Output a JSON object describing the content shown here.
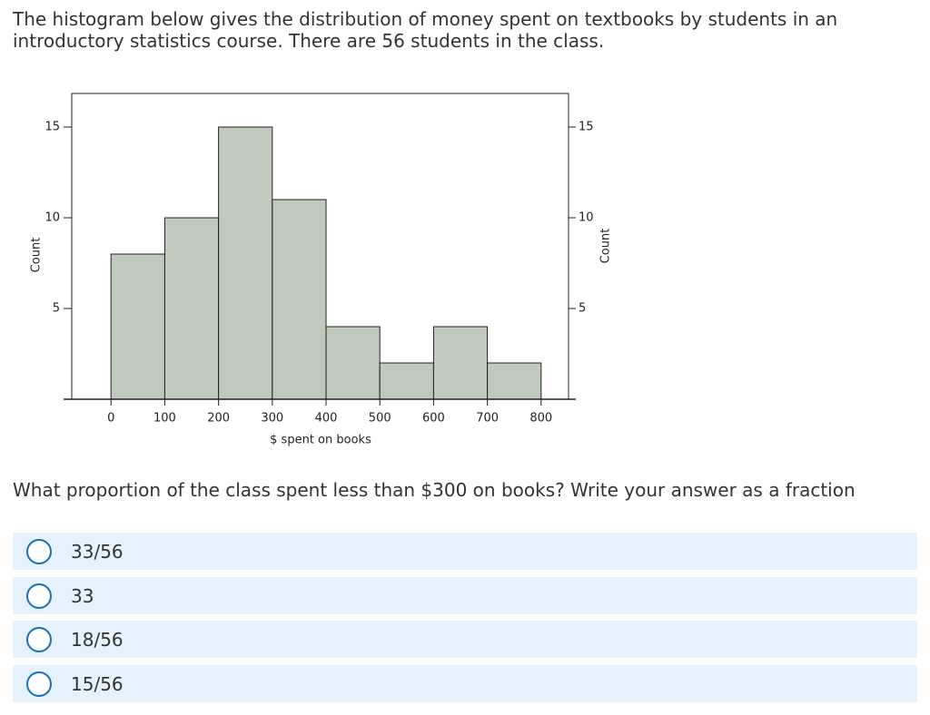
{
  "intro": "The histogram below gives the distribution of money spent on textbooks by students in an introductory statistics course. There are 56 students in the class.",
  "chart_data": {
    "type": "histogram",
    "bins": [
      0,
      100,
      200,
      300,
      400,
      500,
      600,
      700,
      800
    ],
    "values": [
      8,
      10,
      15,
      11,
      4,
      2,
      4,
      2
    ],
    "color": "#bfc9bc",
    "xlabel": "$ spent on books",
    "ylabel": "Count",
    "y2label": "Count",
    "xlim": [
      -73,
      851
    ],
    "xticks": [
      0,
      100,
      200,
      300,
      400,
      500,
      600,
      700,
      800
    ],
    "ylim": [
      0,
      16.85
    ],
    "yticks": [
      5,
      10,
      15
    ],
    "y2lim": [
      0,
      16.85
    ],
    "y2ticks": [
      5,
      10,
      15
    ]
  },
  "question": "What proportion of the class spent less than $300 on books? Write your answer as a fraction",
  "options": [
    "33/56",
    "33",
    "18/56",
    "15/56"
  ]
}
